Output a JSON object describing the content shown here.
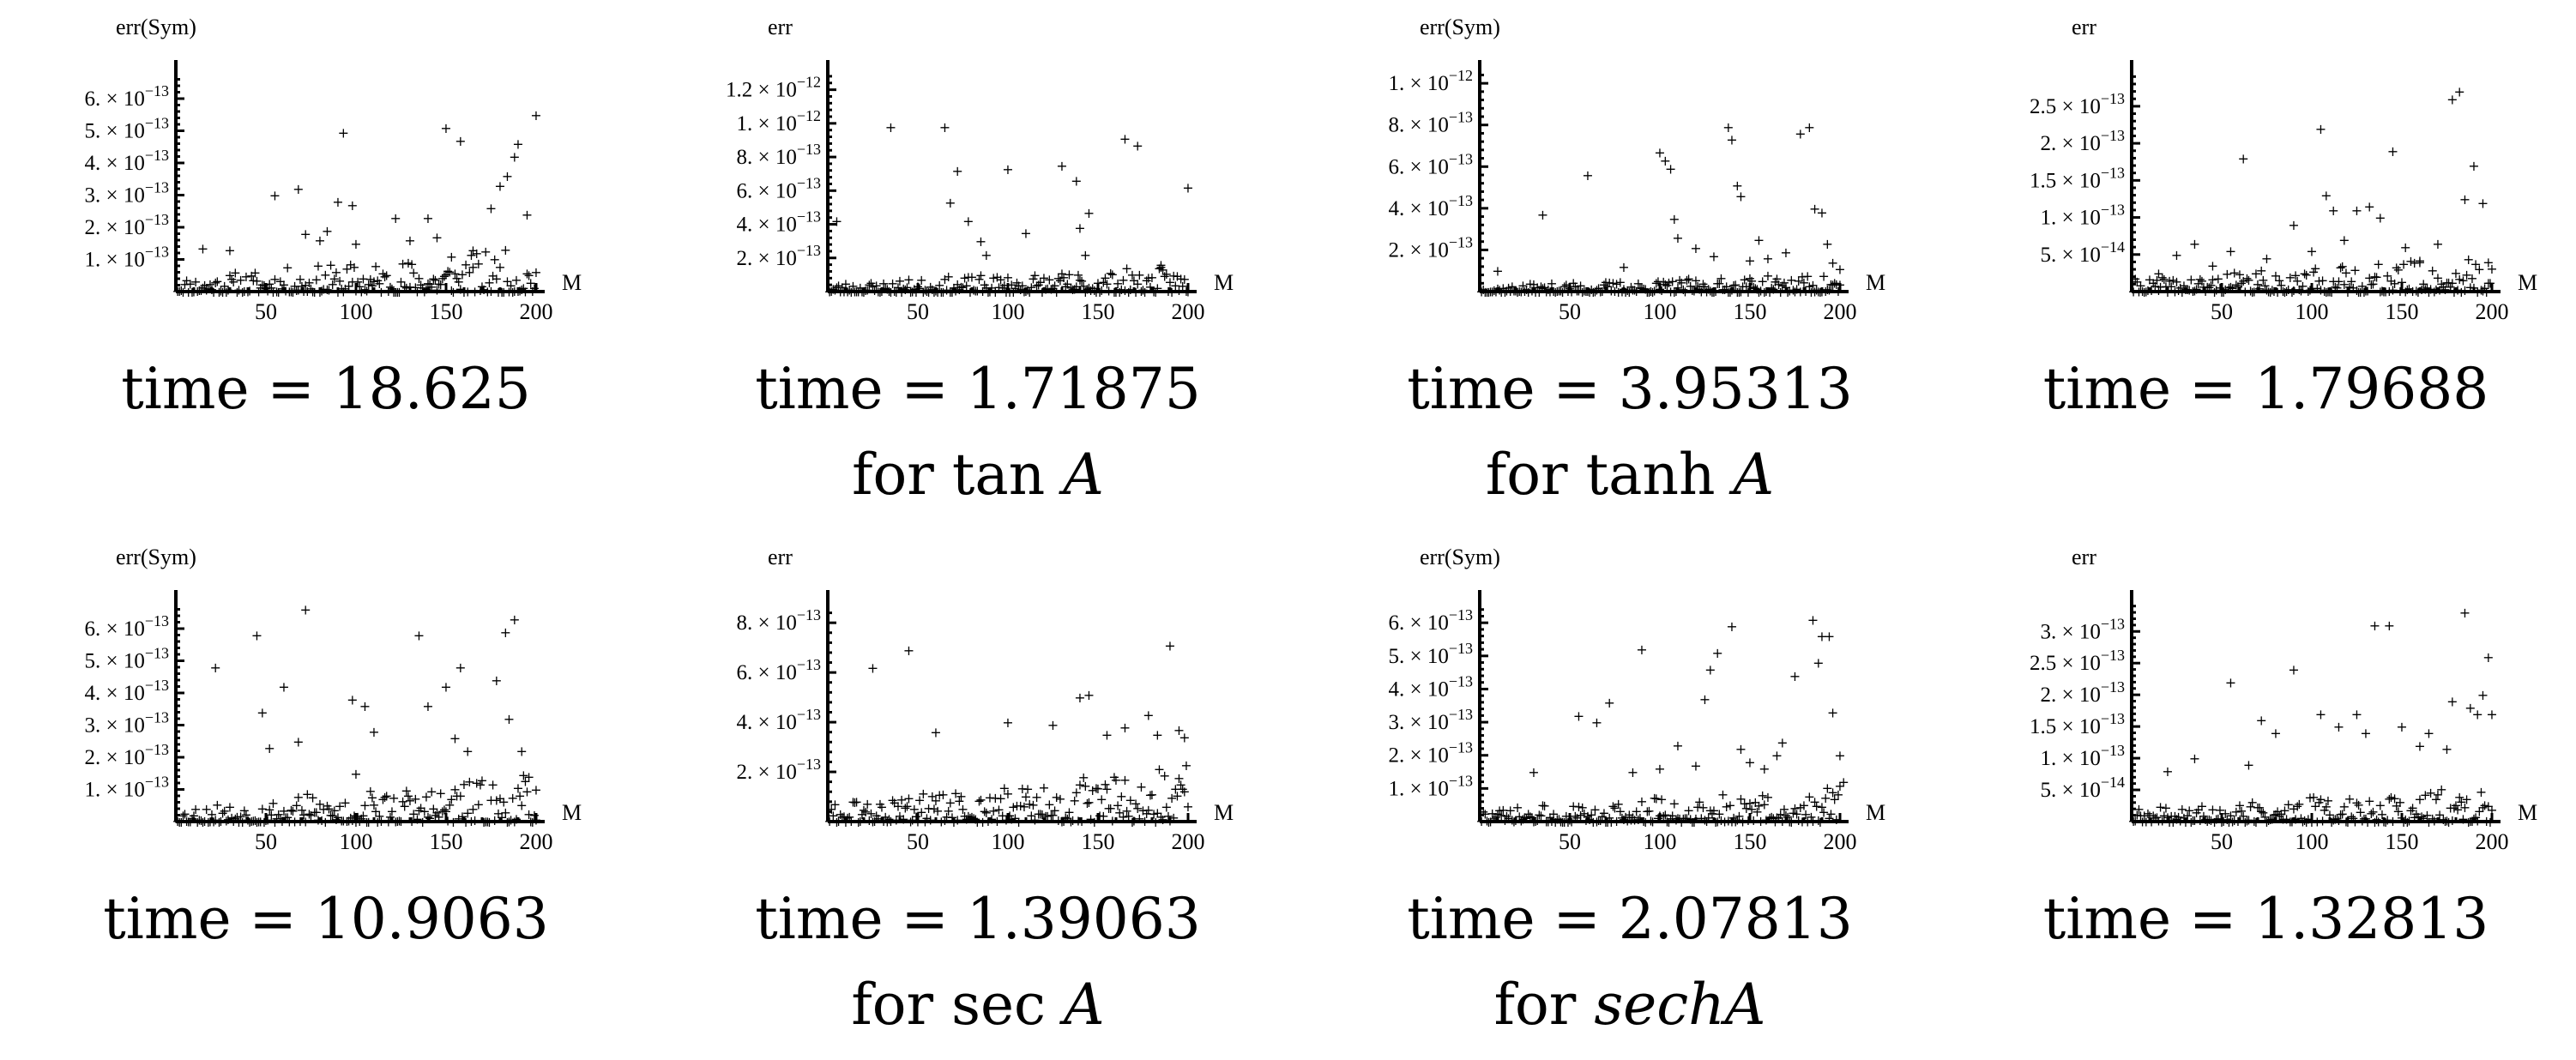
{
  "chart_data": [
    {
      "type": "scatter",
      "title": "",
      "ylabel": "err(Sym)",
      "xlabel": "M",
      "xlim": [
        0,
        200
      ],
      "ylim": [
        0,
        6.8e-13
      ],
      "xticks": [
        50,
        100,
        150,
        200
      ],
      "xtick_labels": [
        "50",
        "100",
        "150",
        "200"
      ],
      "ytick_labels": [
        {
          "mant": "1. × 10",
          "exp": "−13",
          "value": 1e-13
        },
        {
          "mant": "2. × 10",
          "exp": "−13",
          "value": 2e-13
        },
        {
          "mant": "3. × 10",
          "exp": "−13",
          "value": 3e-13
        },
        {
          "mant": "4. × 10",
          "exp": "−13",
          "value": 4e-13
        },
        {
          "mant": "5. × 10",
          "exp": "−13",
          "value": 5e-13
        },
        {
          "mant": "6. × 10",
          "exp": "−13",
          "value": 6e-13
        }
      ],
      "highs": [
        [
          15,
          1.35e-13
        ],
        [
          30,
          1.3e-13
        ],
        [
          55,
          3e-13
        ],
        [
          68,
          3.2e-13
        ],
        [
          72,
          1.8e-13
        ],
        [
          80,
          1.6e-13
        ],
        [
          84,
          1.9e-13
        ],
        [
          90,
          2.8e-13
        ],
        [
          93,
          4.95e-13
        ],
        [
          98,
          2.7e-13
        ],
        [
          100,
          1.5e-13
        ],
        [
          122,
          2.3e-13
        ],
        [
          130,
          1.6e-13
        ],
        [
          140,
          2.3e-13
        ],
        [
          145,
          1.7e-13
        ],
        [
          150,
          5.1e-13
        ],
        [
          153,
          1.1e-13
        ],
        [
          158,
          4.7e-13
        ],
        [
          165,
          1.3e-13
        ],
        [
          175,
          2.6e-13
        ],
        [
          180,
          3.3e-13
        ],
        [
          184,
          3.6e-13
        ],
        [
          188,
          4.2e-13
        ],
        [
          190,
          4.6e-13
        ],
        [
          195,
          2.4e-13
        ],
        [
          200,
          5.5e-13
        ]
      ],
      "spread": 1.4e-13,
      "seed": 11,
      "caption1": "time = 18.625",
      "caption2_pre": "",
      "caption2_ital": ""
    },
    {
      "type": "scatter",
      "title": "",
      "ylabel": "err",
      "xlabel": "M",
      "xlim": [
        0,
        200
      ],
      "ylim": [
        0,
        1.3e-12
      ],
      "xticks": [
        50,
        100,
        150,
        200
      ],
      "xtick_labels": [
        "50",
        "100",
        "150",
        "200"
      ],
      "ytick_labels": [
        {
          "mant": "2. × 10",
          "exp": "−13",
          "value": 2e-13
        },
        {
          "mant": "4. × 10",
          "exp": "−13",
          "value": 4e-13
        },
        {
          "mant": "6. × 10",
          "exp": "−13",
          "value": 6e-13
        },
        {
          "mant": "8. × 10",
          "exp": "−13",
          "value": 8e-13
        },
        {
          "mant": "1. × 10",
          "exp": "−12",
          "value": 1e-12
        },
        {
          "mant": "1.2 × 10",
          "exp": "−12",
          "value": 1.2e-12
        }
      ],
      "highs": [
        [
          5,
          4.2e-13
        ],
        [
          35,
          9.8e-13
        ],
        [
          65,
          9.8e-13
        ],
        [
          68,
          5.3e-13
        ],
        [
          72,
          7.2e-13
        ],
        [
          78,
          4.2e-13
        ],
        [
          85,
          3e-13
        ],
        [
          88,
          2.2e-13
        ],
        [
          100,
          7.3e-13
        ],
        [
          110,
          3.5e-13
        ],
        [
          130,
          7.5e-13
        ],
        [
          138,
          6.6e-13
        ],
        [
          140,
          3.8e-13
        ],
        [
          143,
          2.2e-13
        ],
        [
          145,
          4.7e-13
        ],
        [
          165,
          9.1e-13
        ],
        [
          172,
          8.7e-13
        ],
        [
          185,
          1.6e-13
        ],
        [
          200,
          6.2e-13
        ]
      ],
      "spread": 1.6e-13,
      "seed": 23,
      "caption1": "time = 1.71875",
      "caption2_pre": "for  tan ",
      "caption2_ital": "A"
    },
    {
      "type": "scatter",
      "title": "",
      "ylabel": "err(Sym)",
      "xlabel": "M",
      "xlim": [
        0,
        200
      ],
      "ylim": [
        0,
        1.05e-12
      ],
      "xticks": [
        50,
        100,
        150,
        200
      ],
      "xtick_labels": [
        "50",
        "100",
        "150",
        "200"
      ],
      "ytick_labels": [
        {
          "mant": "2. × 10",
          "exp": "−13",
          "value": 2e-13
        },
        {
          "mant": "4. × 10",
          "exp": "−13",
          "value": 4e-13
        },
        {
          "mant": "6. × 10",
          "exp": "−13",
          "value": 6e-13
        },
        {
          "mant": "8. × 10",
          "exp": "−13",
          "value": 8e-13
        },
        {
          "mant": "1. × 10",
          "exp": "−12",
          "value": 1e-12
        }
      ],
      "highs": [
        [
          10,
          1e-13
        ],
        [
          35,
          3.7e-13
        ],
        [
          60,
          5.6e-13
        ],
        [
          80,
          1.2e-13
        ],
        [
          100,
          6.7e-13
        ],
        [
          103,
          6.3e-13
        ],
        [
          106,
          5.9e-13
        ],
        [
          108,
          3.5e-13
        ],
        [
          110,
          2.6e-13
        ],
        [
          120,
          2.1e-13
        ],
        [
          130,
          1.7e-13
        ],
        [
          138,
          7.9e-13
        ],
        [
          140,
          7.3e-13
        ],
        [
          143,
          5.1e-13
        ],
        [
          145,
          4.6e-13
        ],
        [
          150,
          1.5e-13
        ],
        [
          155,
          2.5e-13
        ],
        [
          160,
          1.6e-13
        ],
        [
          170,
          1.9e-13
        ],
        [
          178,
          7.6e-13
        ],
        [
          183,
          7.9e-13
        ],
        [
          186,
          4e-13
        ],
        [
          190,
          3.8e-13
        ],
        [
          193,
          2.3e-13
        ],
        [
          196,
          1.4e-13
        ],
        [
          200,
          1.1e-13
        ]
      ],
      "spread": 9e-14,
      "seed": 37,
      "caption1": "time = 3.95313",
      "caption2_pre": "for tanh ",
      "caption2_ital": "A"
    },
    {
      "type": "scatter",
      "title": "",
      "ylabel": "err",
      "xlabel": "M",
      "xlim": [
        0,
        200
      ],
      "ylim": [
        0,
        2.95e-13
      ],
      "xticks": [
        50,
        100,
        150,
        200
      ],
      "xtick_labels": [
        "50",
        "100",
        "150",
        "200"
      ],
      "ytick_labels": [
        {
          "mant": "5. × 10",
          "exp": "−14",
          "value": 5e-14
        },
        {
          "mant": "1. × 10",
          "exp": "−13",
          "value": 1e-13
        },
        {
          "mant": "1.5 × 10",
          "exp": "−13",
          "value": 1.5e-13
        },
        {
          "mant": "2. × 10",
          "exp": "−13",
          "value": 2e-13
        },
        {
          "mant": "2.5 × 10",
          "exp": "−13",
          "value": 2.5e-13
        }
      ],
      "highs": [
        [
          15,
          2.5e-14
        ],
        [
          25,
          5e-14
        ],
        [
          35,
          6.5e-14
        ],
        [
          45,
          3.5e-14
        ],
        [
          55,
          5.5e-14
        ],
        [
          62,
          1.8e-13
        ],
        [
          75,
          4.5e-14
        ],
        [
          90,
          9e-14
        ],
        [
          100,
          5.5e-14
        ],
        [
          105,
          2.2e-13
        ],
        [
          108,
          1.3e-13
        ],
        [
          112,
          1.1e-13
        ],
        [
          118,
          7e-14
        ],
        [
          125,
          1.1e-13
        ],
        [
          132,
          1.15e-13
        ],
        [
          138,
          1e-13
        ],
        [
          145,
          1.9e-13
        ],
        [
          152,
          6e-14
        ],
        [
          160,
          4e-14
        ],
        [
          170,
          6.5e-14
        ],
        [
          178,
          2.6e-13
        ],
        [
          182,
          2.7e-13
        ],
        [
          185,
          1.25e-13
        ],
        [
          190,
          1.7e-13
        ],
        [
          195,
          1.2e-13
        ],
        [
          198,
          4e-14
        ]
      ],
      "spread": 5e-14,
      "seed": 41,
      "caption1": "time = 1.79688",
      "caption2_pre": "",
      "caption2_ital": ""
    },
    {
      "type": "scatter",
      "title": "",
      "ylabel": "err(Sym)",
      "xlabel": "M",
      "xlim": [
        0,
        200
      ],
      "ylim": [
        0,
        6.8e-13
      ],
      "xticks": [
        50,
        100,
        150,
        200
      ],
      "xtick_labels": [
        "50",
        "100",
        "150",
        "200"
      ],
      "ytick_labels": [
        {
          "mant": "1. × 10",
          "exp": "−13",
          "value": 1e-13
        },
        {
          "mant": "2. × 10",
          "exp": "−13",
          "value": 2e-13
        },
        {
          "mant": "3. × 10",
          "exp": "−13",
          "value": 3e-13
        },
        {
          "mant": "4. × 10",
          "exp": "−13",
          "value": 4e-13
        },
        {
          "mant": "5. × 10",
          "exp": "−13",
          "value": 5e-13
        },
        {
          "mant": "6. × 10",
          "exp": "−13",
          "value": 6e-13
        }
      ],
      "highs": [
        [
          22,
          4.8e-13
        ],
        [
          45,
          5.8e-13
        ],
        [
          48,
          3.4e-13
        ],
        [
          52,
          2.3e-13
        ],
        [
          60,
          4.2e-13
        ],
        [
          68,
          2.5e-13
        ],
        [
          72,
          6.6e-13
        ],
        [
          98,
          3.8e-13
        ],
        [
          105,
          3.6e-13
        ],
        [
          110,
          2.8e-13
        ],
        [
          100,
          1.5e-13
        ],
        [
          135,
          5.8e-13
        ],
        [
          140,
          3.6e-13
        ],
        [
          150,
          4.2e-13
        ],
        [
          155,
          2.6e-13
        ],
        [
          158,
          4.8e-13
        ],
        [
          162,
          2.2e-13
        ],
        [
          178,
          4.4e-13
        ],
        [
          183,
          5.9e-13
        ],
        [
          188,
          6.3e-13
        ],
        [
          185,
          3.2e-13
        ],
        [
          192,
          2.2e-13
        ],
        [
          196,
          1.4e-13
        ],
        [
          200,
          1e-13
        ]
      ],
      "spread": 1.5e-13,
      "seed": 53,
      "caption1": "time = 10.9063",
      "caption2_pre": "",
      "caption2_ital": ""
    },
    {
      "type": "scatter",
      "title": "",
      "ylabel": "err",
      "xlabel": "M",
      "xlim": [
        0,
        200
      ],
      "ylim": [
        0,
        8.8e-13
      ],
      "xticks": [
        50,
        100,
        150,
        200
      ],
      "xtick_labels": [
        "50",
        "100",
        "150",
        "200"
      ],
      "ytick_labels": [
        {
          "mant": "2. × 10",
          "exp": "−13",
          "value": 2e-13
        },
        {
          "mant": "4. × 10",
          "exp": "−13",
          "value": 4e-13
        },
        {
          "mant": "6. × 10",
          "exp": "−13",
          "value": 6e-13
        },
        {
          "mant": "8. × 10",
          "exp": "−13",
          "value": 8e-13
        }
      ],
      "highs": [
        [
          25,
          6.2e-13
        ],
        [
          45,
          6.9e-13
        ],
        [
          60,
          3.6e-13
        ],
        [
          100,
          4e-13
        ],
        [
          125,
          3.9e-13
        ],
        [
          140,
          5e-13
        ],
        [
          145,
          5.1e-13
        ],
        [
          155,
          3.5e-13
        ],
        [
          165,
          3.8e-13
        ],
        [
          178,
          4.3e-13
        ],
        [
          183,
          3.5e-13
        ],
        [
          190,
          7.1e-13
        ],
        [
          195,
          3.7e-13
        ],
        [
          198,
          3.4e-13
        ]
      ],
      "spread": 2.3e-13,
      "seed": 61,
      "caption1": "time = 1.39063",
      "caption2_pre": "for  sec ",
      "caption2_ital": "A"
    },
    {
      "type": "scatter",
      "title": "",
      "ylabel": "err(Sym)",
      "xlabel": "M",
      "xlim": [
        0,
        200
      ],
      "ylim": [
        0,
        6.6e-13
      ],
      "xticks": [
        50,
        100,
        150,
        200
      ],
      "xtick_labels": [
        "50",
        "100",
        "150",
        "200"
      ],
      "ytick_labels": [
        {
          "mant": "1. × 10",
          "exp": "−13",
          "value": 1e-13
        },
        {
          "mant": "2. × 10",
          "exp": "−13",
          "value": 2e-13
        },
        {
          "mant": "3. × 10",
          "exp": "−13",
          "value": 3e-13
        },
        {
          "mant": "4. × 10",
          "exp": "−13",
          "value": 4e-13
        },
        {
          "mant": "5. × 10",
          "exp": "−13",
          "value": 5e-13
        },
        {
          "mant": "6. × 10",
          "exp": "−13",
          "value": 6e-13
        }
      ],
      "highs": [
        [
          30,
          1.5e-13
        ],
        [
          55,
          3.2e-13
        ],
        [
          65,
          3e-13
        ],
        [
          72,
          3.6e-13
        ],
        [
          85,
          1.5e-13
        ],
        [
          90,
          5.2e-13
        ],
        [
          100,
          1.6e-13
        ],
        [
          110,
          2.3e-13
        ],
        [
          120,
          1.7e-13
        ],
        [
          125,
          3.7e-13
        ],
        [
          128,
          4.6e-13
        ],
        [
          132,
          5.1e-13
        ],
        [
          140,
          5.9e-13
        ],
        [
          145,
          2.2e-13
        ],
        [
          150,
          1.8e-13
        ],
        [
          158,
          1.6e-13
        ],
        [
          165,
          2e-13
        ],
        [
          168,
          2.4e-13
        ],
        [
          175,
          4.4e-13
        ],
        [
          185,
          6.1e-13
        ],
        [
          188,
          4.8e-13
        ],
        [
          190,
          5.6e-13
        ],
        [
          194,
          5.6e-13
        ],
        [
          196,
          3.3e-13
        ],
        [
          200,
          2e-13
        ],
        [
          202,
          1.2e-13
        ]
      ],
      "spread": 1.1e-13,
      "seed": 73,
      "caption1": "time = 2.07813",
      "caption2_pre": "for ",
      "caption2_ital": "sechA"
    },
    {
      "type": "scatter",
      "title": "",
      "ylabel": "err",
      "xlabel": "M",
      "xlim": [
        0,
        200
      ],
      "ylim": [
        0,
        3.45e-13
      ],
      "xticks": [
        50,
        100,
        150,
        200
      ],
      "xtick_labels": [
        "50",
        "100",
        "150",
        "200"
      ],
      "ytick_labels": [
        {
          "mant": "5. × 10",
          "exp": "−14",
          "value": 5e-14
        },
        {
          "mant": "1. × 10",
          "exp": "−13",
          "value": 1e-13
        },
        {
          "mant": "1.5 × 10",
          "exp": "−13",
          "value": 1.5e-13
        },
        {
          "mant": "2. × 10",
          "exp": "−13",
          "value": 2e-13
        },
        {
          "mant": "2.5 × 10",
          "exp": "−13",
          "value": 2.5e-13
        },
        {
          "mant": "3. × 10",
          "exp": "−13",
          "value": 3e-13
        }
      ],
      "highs": [
        [
          20,
          8e-14
        ],
        [
          35,
          1e-13
        ],
        [
          55,
          2.2e-13
        ],
        [
          65,
          9e-14
        ],
        [
          72,
          1.6e-13
        ],
        [
          80,
          1.4e-13
        ],
        [
          90,
          2.4e-13
        ],
        [
          105,
          1.7e-13
        ],
        [
          115,
          1.5e-13
        ],
        [
          125,
          1.7e-13
        ],
        [
          130,
          1.4e-13
        ],
        [
          135,
          3.1e-13
        ],
        [
          143,
          3.1e-13
        ],
        [
          150,
          1.5e-13
        ],
        [
          160,
          1.2e-13
        ],
        [
          165,
          1.4e-13
        ],
        [
          175,
          1.15e-13
        ],
        [
          178,
          1.9e-13
        ],
        [
          185,
          3.3e-13
        ],
        [
          188,
          1.8e-13
        ],
        [
          192,
          1.7e-13
        ],
        [
          195,
          2e-13
        ],
        [
          198,
          2.6e-13
        ],
        [
          200,
          1.7e-13
        ]
      ],
      "spread": 6e-14,
      "seed": 89,
      "caption1": "time = 1.32813",
      "caption2_pre": "",
      "caption2_ital": ""
    }
  ]
}
